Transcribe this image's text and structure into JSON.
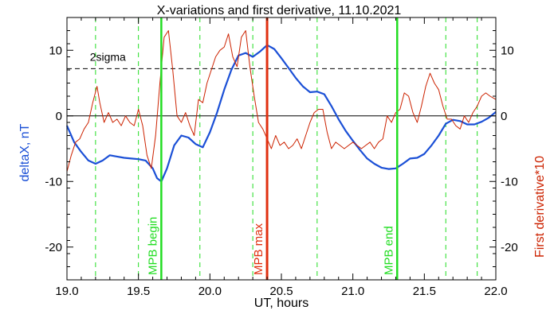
{
  "chart_data": {
    "type": "line",
    "title": "X-variations and first derivative, 11.10.2021",
    "xlabel": "UT, hours",
    "ylabel": "deltaX, nT",
    "ylabel_right": "First derivative*10",
    "xlim": [
      19.0,
      22.0
    ],
    "ylim": [
      -25,
      15
    ],
    "x_ticks": [
      19.0,
      19.5,
      20.0,
      20.5,
      21.0,
      21.5,
      22.0
    ],
    "x_tick_labels": [
      "19.0",
      "19.5",
      "20.0",
      "20.5",
      "21.0",
      "21.5",
      "22.0"
    ],
    "y_ticks": [
      -20,
      -10,
      0,
      10
    ],
    "y_tick_labels": [
      "-20",
      "-10",
      "0",
      "10"
    ],
    "colors": {
      "deltaX": "#1a4fd6",
      "derivative": "#cc2200",
      "mpb_boundary": "#22dd22",
      "mpb_max": "#e03010",
      "sigma": "#000000",
      "green_dashed": "#22dd22"
    },
    "sigma_line": {
      "value": 7.2,
      "label": "2sigma"
    },
    "zero_line": 0,
    "green_dashed_x": [
      19.2,
      19.5,
      19.93,
      20.3,
      20.75,
      21.65,
      21.87
    ],
    "vlines": [
      {
        "x": 19.66,
        "label": "MPB begin",
        "kind": "mpb_boundary"
      },
      {
        "x": 20.4,
        "label": "MPB max",
        "kind": "mpb_max"
      },
      {
        "x": 21.31,
        "label": "MPB end",
        "kind": "mpb_boundary"
      }
    ],
    "series": [
      {
        "key": "deltaX",
        "axis": "left",
        "x": [
          19.0,
          19.05,
          19.1,
          19.15,
          19.2,
          19.25,
          19.3,
          19.35,
          19.4,
          19.45,
          19.5,
          19.55,
          19.6,
          19.63,
          19.66,
          19.7,
          19.75,
          19.8,
          19.85,
          19.9,
          19.95,
          20.0,
          20.05,
          20.1,
          20.15,
          20.2,
          20.25,
          20.3,
          20.35,
          20.4,
          20.45,
          20.5,
          20.55,
          20.6,
          20.65,
          20.7,
          20.75,
          20.8,
          20.85,
          20.9,
          20.95,
          21.0,
          21.05,
          21.1,
          21.15,
          21.2,
          21.25,
          21.3,
          21.35,
          21.4,
          21.45,
          21.5,
          21.55,
          21.6,
          21.65,
          21.7,
          21.75,
          21.8,
          21.85,
          21.9,
          21.95,
          22.0
        ],
        "values": [
          -1.5,
          -4.0,
          -5.5,
          -6.8,
          -7.3,
          -6.8,
          -6.0,
          -6.2,
          -6.4,
          -6.5,
          -6.6,
          -6.8,
          -8.0,
          -9.5,
          -10.0,
          -8.0,
          -4.5,
          -3.0,
          -3.3,
          -4.3,
          -4.8,
          -2.5,
          0.5,
          4.0,
          7.0,
          9.2,
          9.6,
          9.0,
          9.8,
          10.8,
          10.2,
          8.8,
          7.3,
          5.8,
          4.5,
          3.6,
          3.7,
          3.3,
          1.5,
          -0.5,
          -2.3,
          -3.8,
          -5.2,
          -6.5,
          -7.3,
          -7.9,
          -8.1,
          -8.0,
          -7.3,
          -6.5,
          -6.4,
          -5.8,
          -4.5,
          -3.0,
          -1.2,
          -0.6,
          -0.8,
          -1.3,
          -1.3,
          -0.9,
          -0.3,
          0.6
        ]
      },
      {
        "key": "derivative",
        "axis": "right",
        "x": [
          19.0,
          19.03,
          19.06,
          19.09,
          19.12,
          19.15,
          19.18,
          19.21,
          19.23,
          19.26,
          19.29,
          19.32,
          19.35,
          19.38,
          19.41,
          19.44,
          19.47,
          19.5,
          19.53,
          19.56,
          19.59,
          19.62,
          19.65,
          19.68,
          19.71,
          19.74,
          19.77,
          19.8,
          19.83,
          19.86,
          19.89,
          19.92,
          19.95,
          19.98,
          20.01,
          20.04,
          20.07,
          20.1,
          20.13,
          20.16,
          20.19,
          20.22,
          20.25,
          20.28,
          20.31,
          20.34,
          20.37,
          20.4,
          20.43,
          20.46,
          20.49,
          20.52,
          20.55,
          20.58,
          20.61,
          20.64,
          20.67,
          20.7,
          20.73,
          20.76,
          20.79,
          20.82,
          20.85,
          20.88,
          20.91,
          20.94,
          20.97,
          21.0,
          21.03,
          21.06,
          21.09,
          21.12,
          21.15,
          21.18,
          21.21,
          21.24,
          21.27,
          21.3,
          21.33,
          21.36,
          21.39,
          21.42,
          21.45,
          21.48,
          21.51,
          21.54,
          21.57,
          21.6,
          21.63,
          21.66,
          21.69,
          21.72,
          21.75,
          21.78,
          21.81,
          21.84,
          21.87,
          21.9,
          21.93,
          21.96,
          22.0
        ],
        "values": [
          -8.5,
          -6.0,
          -4.0,
          -3.5,
          -2.0,
          -1.0,
          2.0,
          4.5,
          2.0,
          -1.0,
          0.5,
          -1.0,
          -0.5,
          -1.5,
          0.0,
          -1.0,
          -1.5,
          1.0,
          -1.5,
          -6.0,
          -8.0,
          -3.0,
          5.0,
          12.0,
          13.0,
          7.0,
          0.0,
          -1.0,
          0.5,
          -1.5,
          -3.0,
          2.5,
          2.0,
          5.0,
          7.0,
          9.0,
          10.0,
          10.5,
          12.5,
          9.0,
          7.5,
          12.0,
          13.0,
          7.5,
          3.0,
          -1.0,
          -2.0,
          -3.5,
          -5.0,
          -3.0,
          -4.5,
          -4.0,
          -5.0,
          -4.5,
          -3.5,
          -5.0,
          -3.0,
          -1.0,
          0.5,
          1.0,
          1.0,
          -2.5,
          -5.0,
          -4.0,
          -4.5,
          -5.0,
          -4.5,
          -4.0,
          -4.5,
          -5.0,
          -4.5,
          -4.0,
          -5.0,
          -4.0,
          -3.5,
          0.0,
          -1.0,
          0.5,
          1.0,
          3.5,
          3.0,
          0.5,
          -1.0,
          1.5,
          4.5,
          6.5,
          5.0,
          4.0,
          1.5,
          -0.5,
          -0.5,
          -1.5,
          -2.0,
          0.0,
          -1.0,
          0.5,
          1.5,
          3.0,
          3.5,
          3.0,
          2.5
        ]
      }
    ]
  }
}
